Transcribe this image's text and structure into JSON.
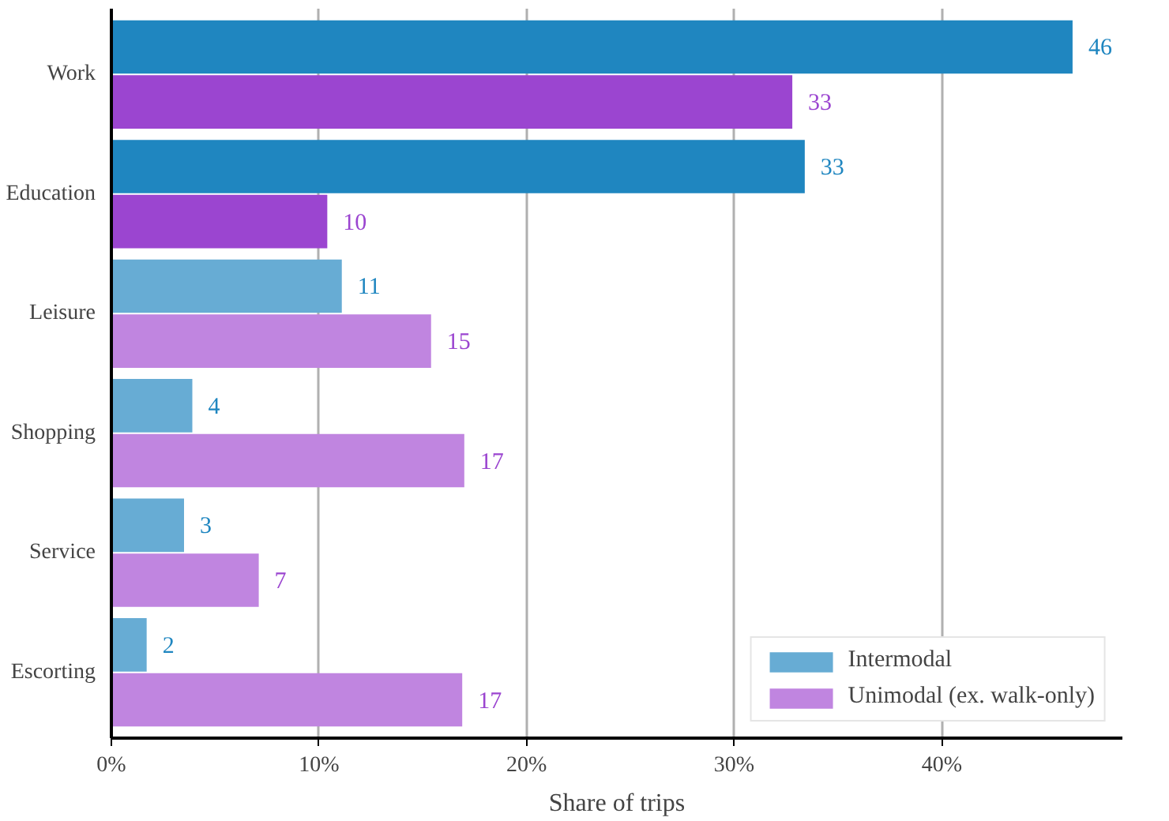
{
  "chart_data": {
    "type": "bar",
    "orientation": "horizontal",
    "xlabel": "Share of trips",
    "categories": [
      "Work",
      "Education",
      "Leisure",
      "Shopping",
      "Service",
      "Escorting"
    ],
    "series": [
      {
        "name": "Intermodal",
        "color": "#67acd4",
        "colors": [
          "#1f86c0",
          "#1f86c0",
          "#67acd4",
          "#67acd4",
          "#67acd4",
          "#67acd4"
        ],
        "values": [
          46.3,
          33.4,
          11.1,
          3.9,
          3.5,
          1.7
        ],
        "value_labels": [
          "46",
          "33",
          "11",
          "4",
          "3",
          "2"
        ]
      },
      {
        "name": "Unimodal (ex. walk-only)",
        "color": "#c085e0",
        "colors": [
          "#9b45d0",
          "#9b45d0",
          "#c085e0",
          "#c085e0",
          "#c085e0",
          "#c085e0"
        ],
        "values": [
          32.8,
          10.4,
          15.4,
          17.0,
          7.1,
          16.9
        ],
        "value_labels": [
          "33",
          "10",
          "15",
          "17",
          "7",
          "17"
        ]
      }
    ],
    "xlim": [
      0,
      48.7
    ],
    "xticks": [
      {
        "value": 0,
        "label": "0%"
      },
      {
        "value": 10,
        "label": "10%"
      },
      {
        "value": 20,
        "label": "20%"
      },
      {
        "value": 30,
        "label": "30%"
      },
      {
        "value": 40,
        "label": "40%"
      }
    ],
    "grid": "x",
    "legend": "bottom right"
  }
}
